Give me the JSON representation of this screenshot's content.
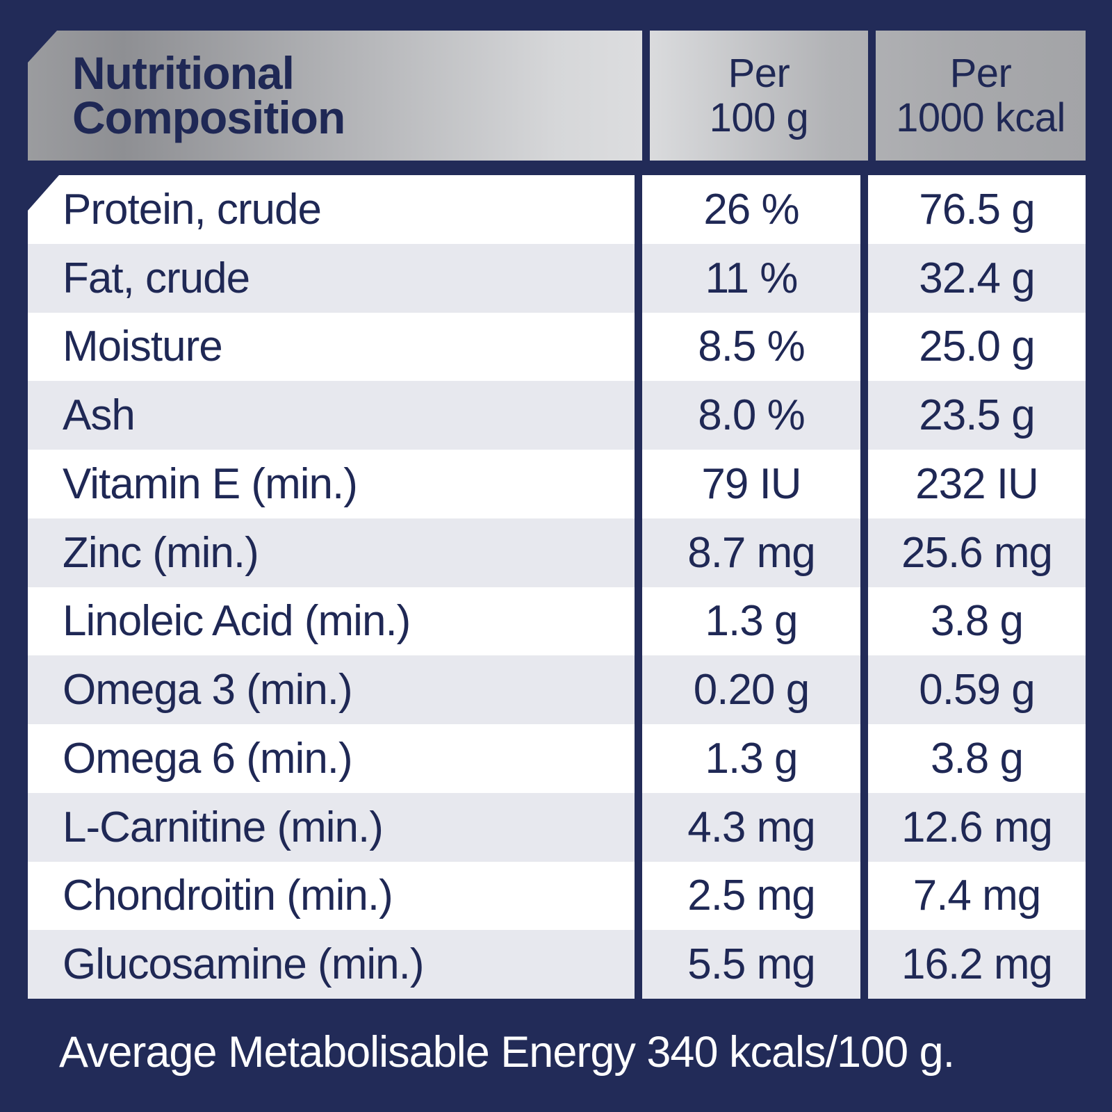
{
  "table": {
    "title": "Nutritional\nComposition",
    "columns": [
      {
        "label": "Per\n100 g"
      },
      {
        "label": "Per\n1000 kcal"
      }
    ],
    "rows": [
      {
        "label": "Protein, crude",
        "per_100g": "26 %",
        "per_1000kcal": "76.5 g"
      },
      {
        "label": "Fat, crude",
        "per_100g": "11 %",
        "per_1000kcal": "32.4 g"
      },
      {
        "label": "Moisture",
        "per_100g": "8.5 %",
        "per_1000kcal": "25.0 g"
      },
      {
        "label": "Ash",
        "per_100g": "8.0 %",
        "per_1000kcal": "23.5 g"
      },
      {
        "label": "Vitamin E (min.)",
        "per_100g": "79 IU",
        "per_1000kcal": "232 IU"
      },
      {
        "label": "Zinc (min.)",
        "per_100g": "8.7 mg",
        "per_1000kcal": "25.6 mg"
      },
      {
        "label": "Linoleic Acid (min.)",
        "per_100g": "1.3 g",
        "per_1000kcal": "3.8 g"
      },
      {
        "label": "Omega 3 (min.)",
        "per_100g": "0.20 g",
        "per_1000kcal": "0.59 g"
      },
      {
        "label": "Omega 6 (min.)",
        "per_100g": "1.3 g",
        "per_1000kcal": "3.8 g"
      },
      {
        "label": "L-Carnitine (min.)",
        "per_100g": "4.3 mg",
        "per_1000kcal": "12.6 mg"
      },
      {
        "label": "Chondroitin (min.)",
        "per_100g": "2.5 mg",
        "per_1000kcal": "7.4 mg"
      },
      {
        "label": "Glucosamine (min.)",
        "per_100g": "5.5 mg",
        "per_1000kcal": "16.2 mg"
      }
    ],
    "footer": "Average Metabolisable Energy 340 kcals/100 g."
  },
  "colors": {
    "background_navy": "#222b58",
    "text_navy": "#1f2855",
    "row_white": "#ffffff",
    "row_alt_gray": "#e7e8ee",
    "header_metallic_dark": "#8e8f93",
    "header_metallic_light": "#dcdddf",
    "footer_text": "#ffffff"
  }
}
